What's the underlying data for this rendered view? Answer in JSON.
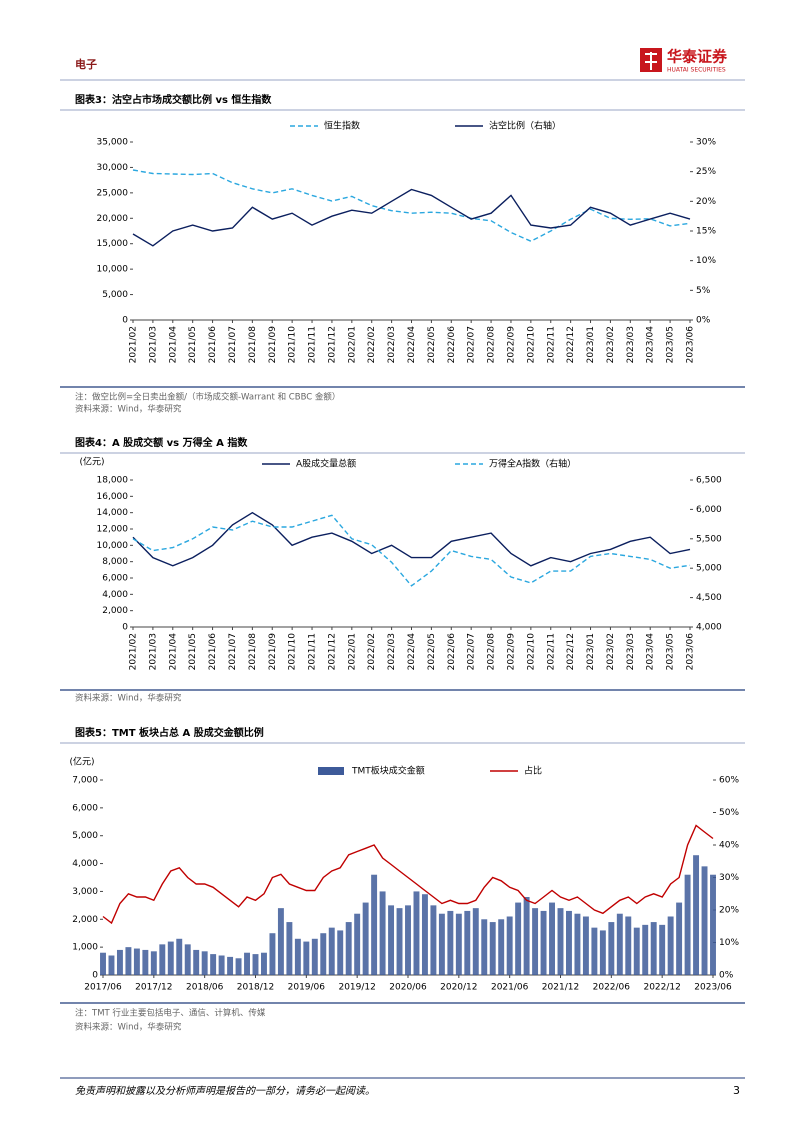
{
  "header": {
    "section": "电子",
    "brand": "华泰证券",
    "brand_en": "HUATAI SECURITIES"
  },
  "chart_data": [
    {
      "type": "line",
      "title": "图表3：沽空占市场成交额比例 vs 恒生指数",
      "categories": [
        "2021/02",
        "2021/03",
        "2021/04",
        "2021/05",
        "2021/06",
        "2021/07",
        "2021/08",
        "2021/09",
        "2021/10",
        "2021/11",
        "2021/12",
        "2022/01",
        "2022/02",
        "2022/03",
        "2022/04",
        "2022/05",
        "2022/06",
        "2022/07",
        "2022/08",
        "2022/09",
        "2022/10",
        "2022/11",
        "2022/12",
        "2023/01",
        "2023/02",
        "2023/03",
        "2023/04",
        "2023/05",
        "2023/06"
      ],
      "series": [
        {
          "name": "恒生指数",
          "color": "#2aa7df",
          "style": "dashed",
          "values": [
            29500,
            28800,
            28700,
            28600,
            28800,
            27000,
            25800,
            25000,
            25800,
            24500,
            23400,
            24300,
            22500,
            21500,
            21000,
            21200,
            21000,
            20000,
            19500,
            17200,
            15500,
            17500,
            19800,
            21800,
            20000,
            19800,
            19900,
            18500,
            19000
          ]
        },
        {
          "name": "沽空比例（右轴）",
          "color": "#0b1f5e",
          "style": "solid",
          "axis": "y2",
          "values": [
            14.5,
            12.5,
            15,
            16,
            15,
            15.5,
            19,
            17,
            18,
            16,
            17.5,
            18.5,
            18,
            20,
            22,
            21,
            19,
            17,
            18,
            21,
            16,
            15.5,
            16,
            19,
            18,
            16,
            17,
            18,
            17
          ]
        }
      ],
      "ylim": [
        0,
        35000
      ],
      "yticks": [
        0,
        {
          "value": 5000,
          "label": "5,000"
        },
        {
          "value": 10000,
          "label": "10,000"
        },
        {
          "value": 15000,
          "label": "15,000"
        },
        {
          "value": 20000,
          "label": "20,000"
        },
        {
          "value": 25000,
          "label": "25,000"
        },
        {
          "value": 30000,
          "label": "30,000"
        },
        {
          "value": 35000,
          "label": "35,000"
        }
      ],
      "y2lim": [
        0,
        30
      ],
      "y2ticks": [
        {
          "value": 0,
          "label": "0%"
        },
        {
          "value": 5,
          "label": "5%"
        },
        {
          "value": 10,
          "label": "10%"
        },
        {
          "value": 15,
          "label": "15%"
        },
        {
          "value": 20,
          "label": "20%"
        },
        {
          "value": 25,
          "label": "25%"
        },
        {
          "value": 30,
          "label": "30%"
        }
      ],
      "notes": [
        "注：做空比例=全日卖出金额/（市场成交额-Warrant 和 CBBC 金额）",
        "资料来源：Wind，华泰研究"
      ]
    },
    {
      "type": "line",
      "title": "图表4：A 股成交额 vs 万得全 A 指数",
      "y_unit": "(亿元)",
      "categories": [
        "2021/02",
        "2021/03",
        "2021/04",
        "2021/05",
        "2021/06",
        "2021/07",
        "2021/08",
        "2021/09",
        "2021/10",
        "2021/11",
        "2021/12",
        "2022/01",
        "2022/02",
        "2022/03",
        "2022/04",
        "2022/05",
        "2022/06",
        "2022/07",
        "2022/08",
        "2022/09",
        "2022/10",
        "2022/11",
        "2022/12",
        "2023/01",
        "2023/02",
        "2023/03",
        "2023/04",
        "2023/05",
        "2023/06"
      ],
      "series": [
        {
          "name": "A股成交量总额",
          "color": "#0b1f5e",
          "style": "solid",
          "values": [
            11000,
            8500,
            7500,
            8500,
            10000,
            12500,
            14000,
            12500,
            10000,
            11000,
            11500,
            10500,
            9000,
            10000,
            8500,
            8500,
            10500,
            11000,
            11500,
            9000,
            7500,
            8500,
            8000,
            9000,
            9500,
            10500,
            11000,
            9000,
            9500
          ]
        },
        {
          "name": "万得全A指数（右轴）",
          "color": "#2aa7df",
          "style": "dashed",
          "axis": "y2",
          "values": [
            5500,
            5300,
            5350,
            5500,
            5700,
            5650,
            5800,
            5700,
            5700,
            5800,
            5900,
            5500,
            5400,
            5100,
            4700,
            4950,
            5300,
            5200,
            5150,
            4850,
            4750,
            4950,
            4950,
            5200,
            5250,
            5200,
            5150,
            5000,
            5050
          ]
        }
      ],
      "ylim": [
        0,
        18000
      ],
      "yticks": [
        0,
        {
          "value": 2000,
          "label": "2,000"
        },
        {
          "value": 4000,
          "label": "4,000"
        },
        {
          "value": 6000,
          "label": "6,000"
        },
        {
          "value": 8000,
          "label": "8,000"
        },
        {
          "value": 10000,
          "label": "10,000"
        },
        {
          "value": 12000,
          "label": "12,000"
        },
        {
          "value": 14000,
          "label": "14,000"
        },
        {
          "value": 16000,
          "label": "16,000"
        },
        {
          "value": 18000,
          "label": "18,000"
        }
      ],
      "y2lim": [
        4000,
        6500
      ],
      "y2ticks": [
        {
          "value": 4000,
          "label": "4,000"
        },
        {
          "value": 4500,
          "label": "4,500"
        },
        {
          "value": 5000,
          "label": "5,000"
        },
        {
          "value": 5500,
          "label": "5,500"
        },
        {
          "value": 6000,
          "label": "6,000"
        },
        {
          "value": 6500,
          "label": "6,500"
        }
      ],
      "notes": [
        "资料来源：Wind，华泰研究"
      ]
    },
    {
      "type": "bar",
      "title": "图表5：TMT 板块占总 A 股成交金额比例",
      "y_unit": "(亿元)",
      "categories": [
        "2017/06",
        null,
        null,
        null,
        null,
        null,
        "2017/12",
        null,
        null,
        null,
        null,
        null,
        "2018/06",
        null,
        null,
        null,
        null,
        null,
        "2018/12",
        null,
        null,
        null,
        null,
        null,
        "2019/06",
        null,
        null,
        null,
        null,
        null,
        "2019/12",
        null,
        null,
        null,
        null,
        null,
        "2020/06",
        null,
        null,
        null,
        null,
        null,
        "2020/12",
        null,
        null,
        null,
        null,
        null,
        "2021/06",
        null,
        null,
        null,
        null,
        null,
        "2021/12",
        null,
        null,
        null,
        null,
        null,
        "2022/06",
        null,
        null,
        null,
        null,
        null,
        "2022/12",
        null,
        null,
        null,
        null,
        null,
        "2023/06"
      ],
      "series": [
        {
          "name": "TMT板块成交金额",
          "color": "#3d5a99",
          "type": "bar",
          "values": [
            800,
            700,
            900,
            1000,
            950,
            900,
            850,
            1100,
            1200,
            1300,
            1100,
            900,
            850,
            750,
            700,
            650,
            600,
            800,
            750,
            800,
            1500,
            2400,
            1900,
            1300,
            1200,
            1300,
            1500,
            1700,
            1600,
            1900,
            2200,
            2600,
            3600,
            3000,
            2500,
            2400,
            2500,
            3000,
            2900,
            2500,
            2200,
            2300,
            2200,
            2300,
            2400,
            2000,
            1900,
            2000,
            2100,
            2600,
            2800,
            2400,
            2300,
            2600,
            2400,
            2300,
            2200,
            2100,
            1700,
            1600,
            1900,
            2200,
            2100,
            1700,
            1800,
            1900,
            1800,
            2100,
            2600,
            3600,
            4300,
            3900,
            3600
          ]
        },
        {
          "name": "占比",
          "color": "#c00000",
          "type": "line",
          "style": "solid",
          "axis": "y2",
          "values": [
            18,
            16,
            22,
            25,
            24,
            24,
            23,
            28,
            32,
            33,
            30,
            28,
            28,
            27,
            25,
            23,
            21,
            24,
            23,
            25,
            30,
            31,
            28,
            27,
            26,
            26,
            30,
            32,
            33,
            37,
            38,
            39,
            40,
            36,
            34,
            32,
            30,
            28,
            26,
            24,
            22,
            23,
            22,
            22,
            23,
            27,
            30,
            29,
            27,
            26,
            23,
            22,
            24,
            26,
            24,
            23,
            24,
            22,
            20,
            19,
            21,
            23,
            24,
            22,
            24,
            25,
            24,
            28,
            30,
            40,
            46,
            44,
            42
          ]
        }
      ],
      "ylim": [
        0,
        7000
      ],
      "yticks": [
        0,
        {
          "value": 1000,
          "label": "1,000"
        },
        {
          "value": 2000,
          "label": "2,000"
        },
        {
          "value": 3000,
          "label": "3,000"
        },
        {
          "value": 4000,
          "label": "4,000"
        },
        {
          "value": 5000,
          "label": "5,000"
        },
        {
          "value": 6000,
          "label": "6,000"
        },
        {
          "value": 7000,
          "label": "7,000"
        }
      ],
      "y2lim": [
        0,
        60
      ],
      "y2ticks": [
        {
          "value": 0,
          "label": "0%"
        },
        {
          "value": 10,
          "label": "10%"
        },
        {
          "value": 20,
          "label": "20%"
        },
        {
          "value": 30,
          "label": "30%"
        },
        {
          "value": 40,
          "label": "40%"
        },
        {
          "value": 50,
          "label": "50%"
        },
        {
          "value": 60,
          "label": "60%"
        }
      ],
      "notes": [
        "注：TMT 行业主要包括电子、通信、计算机、传媒",
        "资料来源：Wind，华泰研究"
      ]
    }
  ],
  "footer": {
    "disclaimer": "免责声明和披露以及分析师声明是报告的一部分，请务必一起阅读。",
    "page": 3
  }
}
